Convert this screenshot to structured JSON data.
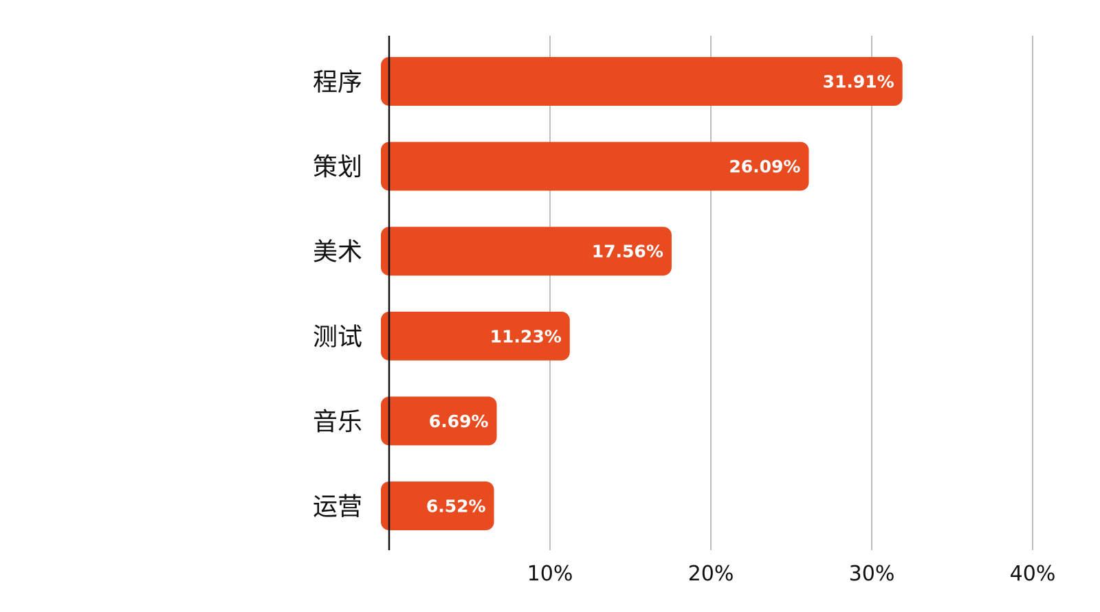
{
  "chart_data": {
    "type": "bar",
    "orientation": "horizontal",
    "title": "",
    "xlabel": "",
    "ylabel": "",
    "categories": [
      "程序",
      "策划",
      "美术",
      "测试",
      "音乐",
      "运营"
    ],
    "values": [
      31.91,
      26.09,
      17.56,
      11.23,
      6.69,
      6.52
    ],
    "value_labels": [
      "31.91%",
      "26.09%",
      "17.56%",
      "11.23%",
      "6.69%",
      "6.52%"
    ],
    "xlim": [
      0,
      40
    ],
    "xticks": [
      10,
      20,
      30,
      40
    ],
    "xtick_labels": [
      "10%",
      "20%",
      "30%",
      "40%"
    ],
    "grid": "vertical",
    "legend": "none",
    "colors": {
      "bar": "#E84B1F",
      "grid": "#bdbdbd",
      "axis": "#111111",
      "data_label": "#ffffff"
    }
  }
}
